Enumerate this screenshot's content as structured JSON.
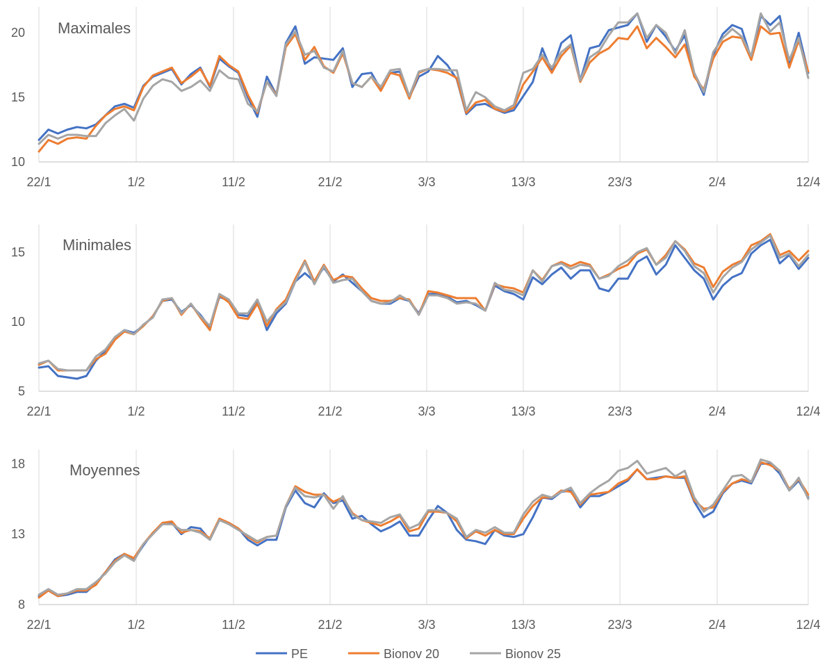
{
  "chart_data": [
    {
      "type": "line",
      "title": "Maximales",
      "ylim": [
        10,
        22
      ],
      "yticks": [
        10,
        15,
        20
      ],
      "x_tick_labels": [
        "22/1",
        "1/2",
        "11/2",
        "21/2",
        "3/3",
        "13/3",
        "23/3",
        "2/4",
        "12/4"
      ],
      "grid": "vertical",
      "series": [
        {
          "name": "PE",
          "color": "#4472C4",
          "values": [
            11.7,
            12.5,
            12.2,
            12.5,
            12.7,
            12.6,
            12.9,
            13.6,
            14.3,
            14.5,
            14.2,
            15.9,
            16.6,
            16.9,
            17.2,
            16,
            16.8,
            17.3,
            15.8,
            18,
            17.4,
            16.9,
            15,
            13.5,
            16.6,
            15.2,
            19.2,
            20.5,
            17.6,
            18.1,
            18,
            17.9,
            18.8,
            15.8,
            16.8,
            16.9,
            15.6,
            16.9,
            17,
            15,
            16.6,
            17,
            18.2,
            17.5,
            16.4,
            13.7,
            14.4,
            14.5,
            14.1,
            13.8,
            14,
            15.1,
            16.2,
            18.8,
            17,
            19.2,
            19.8,
            16.3,
            18.8,
            19,
            20.2,
            20.4,
            20.6,
            21.5,
            19.3,
            20.6,
            19.7,
            18.6,
            19.8,
            16.8,
            15.2,
            18.3,
            19.9,
            20.6,
            20.3,
            18,
            21.3,
            20.6,
            21.3,
            17.6,
            20,
            16.9
          ]
        },
        {
          "name": "Bionov 20",
          "color": "#ED7D31",
          "values": [
            10.8,
            11.7,
            11.4,
            11.8,
            11.9,
            11.8,
            12.8,
            13.6,
            14.1,
            14.3,
            14,
            15.8,
            16.7,
            17,
            17.3,
            16.1,
            16.6,
            17.2,
            15.9,
            18.2,
            17.5,
            17,
            15.2,
            13.8,
            16.2,
            15.2,
            18.9,
            19.9,
            17.9,
            18.9,
            17.4,
            16.9,
            18.4,
            16.1,
            15.8,
            16.6,
            15.5,
            16.9,
            16.7,
            14.9,
            16.9,
            17.2,
            17.1,
            16.9,
            16.5,
            13.8,
            14.6,
            14.8,
            14.1,
            13.9,
            14.2,
            16,
            17,
            18.1,
            16.9,
            18.2,
            19,
            16.2,
            17.7,
            18.4,
            18.8,
            19.6,
            19.5,
            20.5,
            18.8,
            19.6,
            18.9,
            18.1,
            19.1,
            16.6,
            15.6,
            18,
            19.3,
            19.7,
            19.6,
            17.9,
            20.5,
            19.9,
            20,
            17.3,
            19.4,
            17
          ]
        },
        {
          "name": "Bionov 25",
          "color": "#A5A5A5",
          "values": [
            11.4,
            12.1,
            11.8,
            12.1,
            12.1,
            12,
            12,
            13,
            13.6,
            14.1,
            13.2,
            14.9,
            15.9,
            16.4,
            16.2,
            15.5,
            15.8,
            16.3,
            15.5,
            17.1,
            16.5,
            16.4,
            14.5,
            13.9,
            16.2,
            15.1,
            19.1,
            20.1,
            18.3,
            18.6,
            17.3,
            17,
            18.6,
            16.1,
            15.8,
            16.6,
            15.8,
            17.1,
            17.2,
            15.1,
            17,
            17.2,
            17.2,
            17.1,
            17.1,
            14,
            15.4,
            15,
            14.3,
            14,
            14.4,
            16.9,
            17.2,
            18.3,
            17.3,
            18.5,
            19.1,
            16.3,
            18.1,
            18.6,
            19.8,
            20.8,
            20.8,
            21.5,
            19.6,
            20.6,
            20,
            18.4,
            20.2,
            16.9,
            15.4,
            18.5,
            19.6,
            20.3,
            19.7,
            18.2,
            21.5,
            20.1,
            20.8,
            17.9,
            19.6,
            16.5
          ]
        }
      ]
    },
    {
      "type": "line",
      "title": "Minimales",
      "ylim": [
        5,
        17
      ],
      "yticks": [
        5,
        10,
        15
      ],
      "x_tick_labels": [
        "22/1",
        "1/2",
        "11/2",
        "21/2",
        "3/3",
        "13/3",
        "23/3",
        "2/4",
        "12/4"
      ],
      "grid": "vertical",
      "series": [
        {
          "name": "PE",
          "color": "#4472C4",
          "values": [
            6.7,
            6.8,
            6.1,
            6,
            5.9,
            6.1,
            7.2,
            7.9,
            8.8,
            9.4,
            9.2,
            9.7,
            10.4,
            11.5,
            11.6,
            10.7,
            11.2,
            10.5,
            9.6,
            11.8,
            11.5,
            10.5,
            10.4,
            11.5,
            9.4,
            10.6,
            11.3,
            12.9,
            13.5,
            12.9,
            13.9,
            12.9,
            13.4,
            12.8,
            12.2,
            11.5,
            11.3,
            11.3,
            11.7,
            11.5,
            10.6,
            12,
            12,
            11.8,
            11.4,
            11.5,
            11.2,
            10.8,
            12.6,
            12.2,
            12,
            11.6,
            13.2,
            12.7,
            13.4,
            13.9,
            13.1,
            13.7,
            13.7,
            12.4,
            12.2,
            13.1,
            13.1,
            14.3,
            14.7,
            13.4,
            14.1,
            15.5,
            14.6,
            13.7,
            13.1,
            11.6,
            12.6,
            13.2,
            13.5,
            14.9,
            15.5,
            15.9,
            14.2,
            14.8,
            13.8,
            14.6
          ]
        },
        {
          "name": "Bionov 20",
          "color": "#ED7D31",
          "values": [
            6.9,
            7.2,
            6.5,
            6.5,
            6.5,
            6.5,
            7.3,
            7.7,
            8.7,
            9.3,
            9.1,
            9.7,
            10.4,
            11.5,
            11.7,
            10.5,
            11.3,
            10.3,
            9.4,
            11.9,
            11.4,
            10.3,
            10.2,
            11.3,
            9.7,
            10.9,
            11.6,
            13.1,
            14.4,
            12.9,
            14.1,
            13,
            13.3,
            13.2,
            12.4,
            11.7,
            11.5,
            11.5,
            11.7,
            11.6,
            10.5,
            12.2,
            12.1,
            11.9,
            11.7,
            11.7,
            11.7,
            10.8,
            12.7,
            12.5,
            12.4,
            12.1,
            13.7,
            13,
            14,
            14.3,
            14,
            14.3,
            14.1,
            13.1,
            13.4,
            13.8,
            14.1,
            14.9,
            15.2,
            14.1,
            14.8,
            15.8,
            15.2,
            14.2,
            13.9,
            12.5,
            13.6,
            14.1,
            14.4,
            15.5,
            15.8,
            16.3,
            14.8,
            15.1,
            14.4,
            15.1
          ]
        },
        {
          "name": "Bionov 25",
          "color": "#A5A5A5",
          "values": [
            7,
            7.2,
            6.6,
            6.5,
            6.5,
            6.5,
            7.5,
            8,
            8.9,
            9.4,
            9.1,
            9.8,
            10.3,
            11.6,
            11.7,
            10.6,
            11.3,
            10.4,
            9.7,
            12,
            11.6,
            10.6,
            10.6,
            11.6,
            10,
            10.8,
            11.4,
            12.9,
            14.3,
            12.7,
            14,
            12.8,
            13,
            13.1,
            12.2,
            11.5,
            11.3,
            11.4,
            11.9,
            11.5,
            10.5,
            11.9,
            11.9,
            11.7,
            11.3,
            11.4,
            11.3,
            10.8,
            12.8,
            12.3,
            12.2,
            11.9,
            13.7,
            12.9,
            14,
            14.2,
            13.8,
            14.1,
            14,
            13.1,
            13.3,
            14,
            14.4,
            15,
            15.3,
            14.1,
            14.6,
            15.8,
            15.1,
            14,
            13.5,
            12.1,
            13.2,
            13.9,
            14.3,
            15.2,
            15.7,
            16.2,
            14.6,
            14.9,
            14,
            14.8
          ]
        }
      ]
    },
    {
      "type": "line",
      "title": "Moyennes",
      "ylim": [
        8,
        19
      ],
      "yticks": [
        8,
        13,
        18
      ],
      "x_tick_labels": [
        "22/1",
        "1/2",
        "11/2",
        "21/2",
        "3/3",
        "13/3",
        "23/3",
        "2/4",
        "12/4"
      ],
      "grid": "vertical",
      "series": [
        {
          "name": "PE",
          "color": "#4472C4",
          "values": [
            8.6,
            9,
            8.6,
            8.7,
            8.9,
            8.9,
            9.5,
            10.3,
            11.2,
            11.6,
            11.2,
            12.2,
            13.1,
            13.7,
            13.8,
            13,
            13.5,
            13.4,
            12.6,
            14,
            13.8,
            13.4,
            12.6,
            12.2,
            12.6,
            12.6,
            14.9,
            16.1,
            15.2,
            14.9,
            15.9,
            15.2,
            15.4,
            14.1,
            14.3,
            13.7,
            13.2,
            13.5,
            13.9,
            12.9,
            12.9,
            14,
            15,
            14.5,
            13.3,
            12.6,
            12.5,
            12.3,
            13.3,
            12.9,
            12.8,
            13,
            14.2,
            15.6,
            15.5,
            16,
            16.1,
            14.9,
            15.7,
            15.7,
            16,
            16.4,
            16.8,
            17.6,
            16.9,
            17,
            17.1,
            17,
            17,
            15.3,
            14.2,
            14.6,
            15.9,
            16.6,
            16.8,
            16.6,
            18,
            18,
            17.3,
            16.1,
            16.8,
            15.6
          ]
        },
        {
          "name": "Bionov 20",
          "color": "#ED7D31",
          "values": [
            8.5,
            9,
            8.6,
            8.8,
            9,
            9,
            9.4,
            10.3,
            11.1,
            11.6,
            11.3,
            12.3,
            13.1,
            13.8,
            13.9,
            13.1,
            13.3,
            13.2,
            12.7,
            14.1,
            13.8,
            13.4,
            12.8,
            12.4,
            12.8,
            12.9,
            15,
            16.4,
            16,
            15.8,
            15.8,
            15.3,
            15.6,
            14.5,
            14,
            13.8,
            13.6,
            13.9,
            14.3,
            13.2,
            13.4,
            14.6,
            14.6,
            14.5,
            13.9,
            12.7,
            13.2,
            12.9,
            13.3,
            13,
            13,
            14.1,
            15,
            15.6,
            15.6,
            16.1,
            16,
            15.1,
            15.8,
            15.9,
            16,
            16.6,
            16.9,
            17.6,
            16.9,
            16.9,
            17.1,
            17,
            17.1,
            15.4,
            14.8,
            14.9,
            16,
            16.6,
            16.9,
            16.7,
            18.1,
            17.9,
            17.5,
            16.2,
            16.9,
            15.8
          ]
        },
        {
          "name": "Bionov 25",
          "color": "#A5A5A5",
          "values": [
            8.7,
            9.1,
            8.7,
            8.8,
            9.1,
            9.1,
            9.6,
            10.2,
            11,
            11.5,
            11.1,
            12.3,
            13,
            13.7,
            13.7,
            13.3,
            13.3,
            13.1,
            12.6,
            14,
            13.7,
            13.3,
            12.9,
            12.5,
            12.8,
            12.9,
            15,
            16.3,
            15.7,
            15.6,
            15.8,
            14.8,
            15.7,
            14.4,
            14,
            13.9,
            13.8,
            14.2,
            14.4,
            13.4,
            13.7,
            14.7,
            14.7,
            14.5,
            14.1,
            12.8,
            13.3,
            13.1,
            13.5,
            13.1,
            13.1,
            14.4,
            15.3,
            15.8,
            15.6,
            16,
            16.3,
            15.2,
            15.9,
            16.4,
            16.8,
            17.5,
            17.7,
            18.2,
            17.3,
            17.5,
            17.7,
            17.1,
            17.5,
            15.6,
            14.6,
            15.1,
            16.1,
            17.1,
            17.2,
            16.7,
            18.3,
            18.1,
            17.5,
            16.1,
            17,
            15.5
          ]
        }
      ]
    }
  ],
  "legend": {
    "items": [
      {
        "label": "PE",
        "color": "#4472C4"
      },
      {
        "label": "Bionov 20",
        "color": "#ED7D31"
      },
      {
        "label": "Bionov 25",
        "color": "#A5A5A5"
      }
    ]
  },
  "colors": {
    "grid": "#D9D9D9",
    "axis": "#BFBFBF",
    "text": "#595959"
  }
}
